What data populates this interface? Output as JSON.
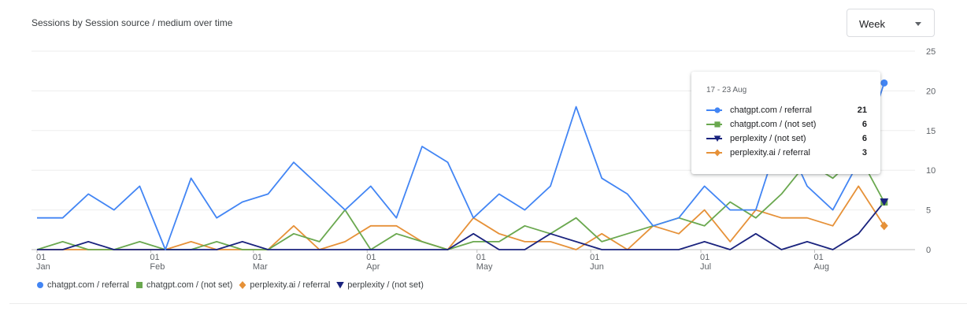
{
  "card": {
    "title": "Sessions by Session source / medium over time"
  },
  "granularity_select": {
    "value": "Week"
  },
  "chart_data": {
    "type": "line",
    "title": "Sessions by Session source / medium over time",
    "x_unit": "week",
    "x_tick_labels": [
      {
        "week": 0,
        "day": "01",
        "month": "Jan"
      },
      {
        "week": 4.43,
        "day": "01",
        "month": "Feb"
      },
      {
        "week": 8.43,
        "day": "01",
        "month": "Mar"
      },
      {
        "week": 12.86,
        "day": "01",
        "month": "Apr"
      },
      {
        "week": 17.14,
        "day": "01",
        "month": "May"
      },
      {
        "week": 21.57,
        "day": "01",
        "month": "Jun"
      },
      {
        "week": 25.86,
        "day": "01",
        "month": "Jul"
      },
      {
        "week": 30.29,
        "day": "01",
        "month": "Aug"
      }
    ],
    "ylim": [
      0,
      25
    ],
    "yticks": [
      0,
      5,
      10,
      15,
      20,
      25
    ],
    "y_axis_side": "right",
    "grid": true,
    "legend_position": "bottom-left",
    "series": [
      {
        "name": "chatgpt.com / referral",
        "color": "#4285f4",
        "marker": "circle",
        "values": [
          4,
          4,
          7,
          5,
          8,
          0,
          9,
          4,
          6,
          7,
          11,
          8,
          5,
          8,
          4,
          13,
          11,
          4,
          7,
          5,
          8,
          18,
          9,
          7,
          3,
          4,
          8,
          5,
          5,
          15,
          8,
          5,
          11,
          21
        ]
      },
      {
        "name": "chatgpt.com / (not set)",
        "color": "#6aa84f",
        "marker": "square",
        "values": [
          0,
          1,
          0,
          0,
          1,
          0,
          0,
          1,
          0,
          0,
          2,
          1,
          5,
          0,
          2,
          1,
          0,
          1,
          1,
          3,
          2,
          4,
          1,
          2,
          3,
          4,
          3,
          6,
          4,
          7,
          11,
          9,
          12,
          6
        ]
      },
      {
        "name": "perplexity.ai / referral",
        "color": "#e69138",
        "marker": "diamond",
        "values": [
          0,
          0,
          0,
          0,
          0,
          0,
          1,
          0,
          0,
          0,
          3,
          0,
          1,
          3,
          3,
          1,
          0,
          4,
          2,
          1,
          1,
          0,
          2,
          0,
          3,
          2,
          5,
          1,
          5,
          4,
          4,
          3,
          8,
          3
        ]
      },
      {
        "name": "perplexity / (not set)",
        "color": "#1a237e",
        "marker": "triangle-down",
        "values": [
          0,
          0,
          1,
          0,
          0,
          0,
          0,
          0,
          1,
          0,
          0,
          0,
          0,
          0,
          0,
          0,
          0,
          2,
          0,
          0,
          2,
          1,
          0,
          0,
          0,
          0,
          1,
          0,
          2,
          0,
          1,
          0,
          2,
          6
        ]
      }
    ]
  },
  "legend": {
    "items": [
      {
        "label": "chatgpt.com / referral",
        "color": "#4285f4",
        "marker": "circle"
      },
      {
        "label": "chatgpt.com / (not set)",
        "color": "#6aa84f",
        "marker": "square"
      },
      {
        "label": "perplexity.ai / referral",
        "color": "#e69138",
        "marker": "diamond"
      },
      {
        "label": "perplexity / (not set)",
        "color": "#1a237e",
        "marker": "triangle-down"
      }
    ]
  },
  "tooltip": {
    "title": "17 - 23 Aug",
    "rows": [
      {
        "label": "chatgpt.com / referral",
        "value": "21",
        "color": "#4285f4",
        "marker": "circle"
      },
      {
        "label": "chatgpt.com / (not set)",
        "value": "6",
        "color": "#6aa84f",
        "marker": "square"
      },
      {
        "label": "perplexity / (not set)",
        "value": "6",
        "color": "#1a237e",
        "marker": "triangle-down"
      },
      {
        "label": "perplexity.ai / referral",
        "value": "3",
        "color": "#e69138",
        "marker": "diamond"
      }
    ]
  }
}
